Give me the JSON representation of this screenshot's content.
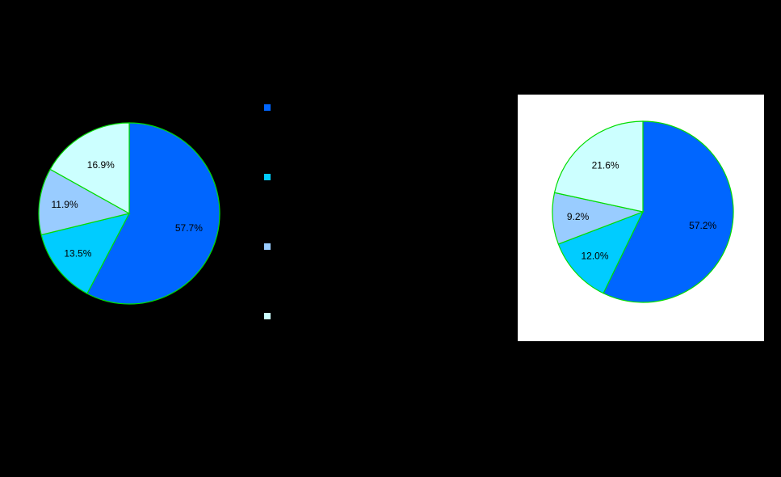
{
  "chart_data": [
    {
      "type": "pie",
      "title": "",
      "slice_outline": "#00dd00",
      "background": "#000000",
      "slices": [
        {
          "label": "57.7%",
          "value": 57.7,
          "color": "#0066ff"
        },
        {
          "label": "13.5%",
          "value": 13.5,
          "color": "#00ccff"
        },
        {
          "label": "11.9%",
          "value": 11.9,
          "color": "#99ccff"
        },
        {
          "label": "16.9%",
          "value": 16.9,
          "color": "#ccffff"
        }
      ]
    },
    {
      "type": "pie",
      "title": "",
      "slice_outline": "#00dd00",
      "background": "#ffffff",
      "slices": [
        {
          "label": "57.2%",
          "value": 57.2,
          "color": "#0066ff"
        },
        {
          "label": "12.0%",
          "value": 12.0,
          "color": "#00ccff"
        },
        {
          "label": "9.2%",
          "value": 9.2,
          "color": "#99ccff"
        },
        {
          "label": "21.6%",
          "value": 21.6,
          "color": "#ccffff"
        }
      ]
    }
  ],
  "legend": {
    "placement": "center",
    "entries": [
      {
        "label": "",
        "color": "#0066ff"
      },
      {
        "label": "",
        "color": "#00ccff"
      },
      {
        "label": "",
        "color": "#99ccff"
      },
      {
        "label": "",
        "color": "#ccffff"
      }
    ]
  }
}
